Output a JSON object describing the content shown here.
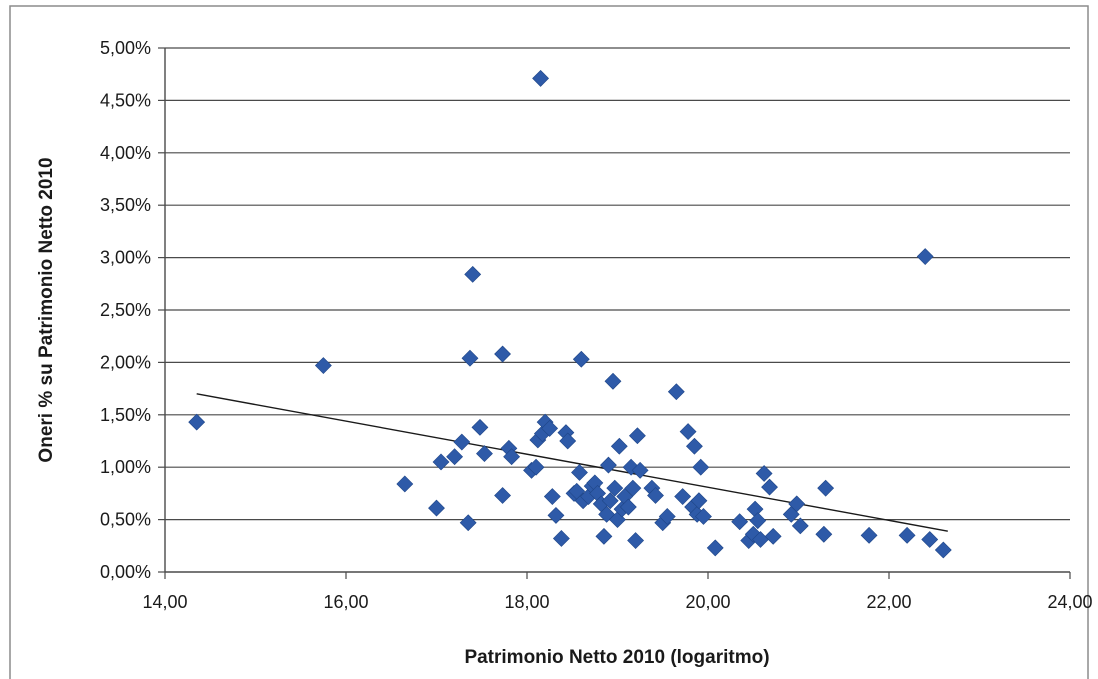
{
  "chart_data": {
    "type": "scatter",
    "title": "",
    "xlabel": "Patrimonio Netto 2010 (logaritmo)",
    "ylabel": "Oneri % su Patrimonio Netto 2010",
    "xlim": [
      14,
      24
    ],
    "ylim": [
      0,
      5
    ],
    "x_ticks": [
      14,
      16,
      18,
      20,
      22,
      24
    ],
    "y_ticks": [
      0,
      0.5,
      1,
      1.5,
      2,
      2.5,
      3,
      3.5,
      4,
      4.5,
      5
    ],
    "x_tick_labels": [
      "14,00",
      "16,00",
      "18,00",
      "20,00",
      "22,00",
      "24,00"
    ],
    "y_tick_labels": [
      "0,00%",
      "0,50%",
      "1,00%",
      "1,50%",
      "2,00%",
      "2,50%",
      "3,00%",
      "3,50%",
      "4,00%",
      "4,50%",
      "5,00%"
    ],
    "grid": "horizontal",
    "legend": "none",
    "marker": "diamond",
    "marker_color": "#2e5aa8",
    "trendline": {
      "type": "linear",
      "x": [
        14.35,
        22.65
      ],
      "y": [
        1.7,
        0.39
      ],
      "color": "#1a1a1a"
    },
    "points": [
      [
        14.35,
        1.43
      ],
      [
        15.75,
        1.97
      ],
      [
        16.65,
        0.84
      ],
      [
        17.0,
        0.61
      ],
      [
        17.05,
        1.05
      ],
      [
        17.2,
        1.1
      ],
      [
        17.28,
        1.24
      ],
      [
        17.35,
        0.47
      ],
      [
        17.37,
        2.04
      ],
      [
        17.4,
        2.84
      ],
      [
        17.48,
        1.38
      ],
      [
        17.53,
        1.13
      ],
      [
        17.73,
        0.73
      ],
      [
        17.73,
        2.08
      ],
      [
        17.8,
        1.18
      ],
      [
        17.83,
        1.1
      ],
      [
        18.05,
        0.97
      ],
      [
        18.1,
        1.0
      ],
      [
        18.12,
        1.26
      ],
      [
        18.15,
        4.71
      ],
      [
        18.17,
        1.32
      ],
      [
        18.2,
        1.43
      ],
      [
        18.25,
        1.37
      ],
      [
        18.28,
        0.72
      ],
      [
        18.32,
        0.54
      ],
      [
        18.38,
        0.32
      ],
      [
        18.43,
        1.33
      ],
      [
        18.45,
        1.25
      ],
      [
        18.52,
        0.75
      ],
      [
        18.55,
        0.77
      ],
      [
        18.58,
        0.95
      ],
      [
        18.6,
        2.03
      ],
      [
        18.62,
        0.68
      ],
      [
        18.68,
        0.72
      ],
      [
        18.72,
        0.82
      ],
      [
        18.75,
        0.85
      ],
      [
        18.78,
        0.75
      ],
      [
        18.82,
        0.65
      ],
      [
        18.85,
        0.34
      ],
      [
        18.88,
        0.55
      ],
      [
        18.9,
        1.02
      ],
      [
        18.92,
        0.68
      ],
      [
        18.95,
        1.82
      ],
      [
        18.97,
        0.8
      ],
      [
        19.0,
        0.5
      ],
      [
        19.02,
        1.2
      ],
      [
        19.05,
        0.6
      ],
      [
        19.08,
        0.72
      ],
      [
        19.12,
        0.62
      ],
      [
        19.15,
        1.0
      ],
      [
        19.17,
        0.8
      ],
      [
        19.2,
        0.3
      ],
      [
        19.22,
        1.3
      ],
      [
        19.25,
        0.97
      ],
      [
        19.38,
        0.8
      ],
      [
        19.42,
        0.73
      ],
      [
        19.5,
        0.47
      ],
      [
        19.55,
        0.53
      ],
      [
        19.65,
        1.72
      ],
      [
        19.72,
        0.72
      ],
      [
        19.78,
        1.34
      ],
      [
        19.83,
        0.62
      ],
      [
        19.85,
        1.2
      ],
      [
        19.88,
        0.55
      ],
      [
        19.9,
        0.68
      ],
      [
        19.92,
        1.0
      ],
      [
        19.95,
        0.53
      ],
      [
        20.08,
        0.23
      ],
      [
        20.35,
        0.48
      ],
      [
        20.45,
        0.3
      ],
      [
        20.5,
        0.36
      ],
      [
        20.52,
        0.6
      ],
      [
        20.55,
        0.49
      ],
      [
        20.58,
        0.31
      ],
      [
        20.62,
        0.94
      ],
      [
        20.68,
        0.81
      ],
      [
        20.72,
        0.34
      ],
      [
        20.92,
        0.55
      ],
      [
        20.98,
        0.65
      ],
      [
        21.02,
        0.44
      ],
      [
        21.28,
        0.36
      ],
      [
        21.3,
        0.8
      ],
      [
        21.78,
        0.35
      ],
      [
        22.2,
        0.35
      ],
      [
        22.4,
        3.01
      ],
      [
        22.45,
        0.31
      ],
      [
        22.6,
        0.21
      ]
    ]
  }
}
